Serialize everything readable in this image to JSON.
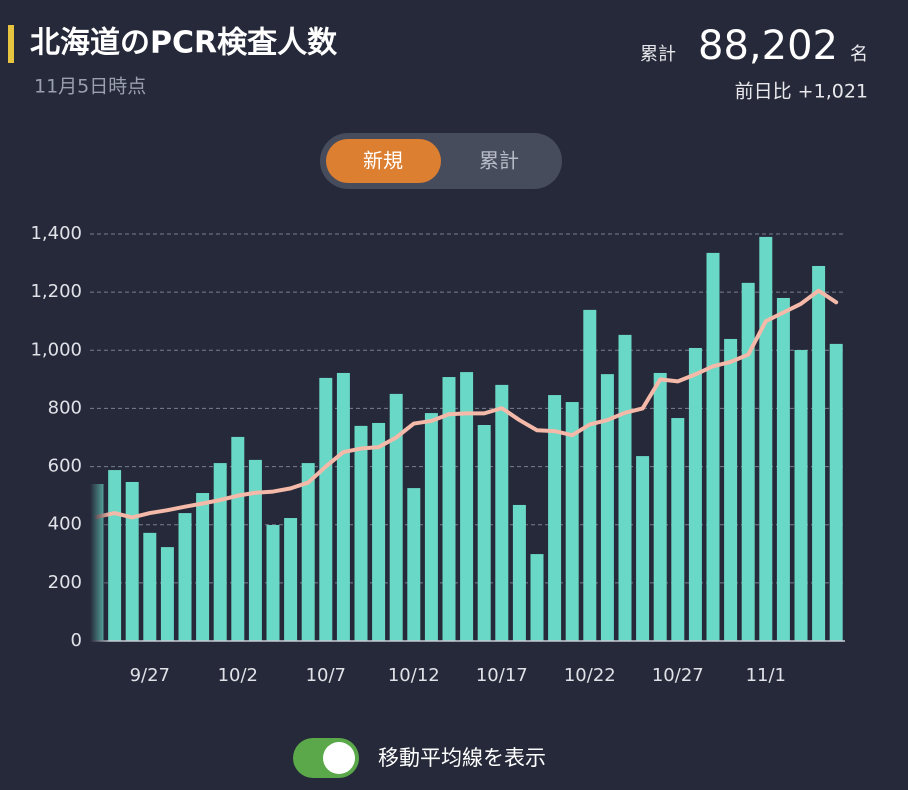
{
  "header": {
    "title": "北海道のPCR検査人数",
    "subtitle": "11月5日時点",
    "total_label": "累計",
    "total_value": "88,202",
    "total_unit": "名",
    "change": "前日比 +1,021"
  },
  "tabs": [
    "新規",
    "累計"
  ],
  "toggle_label": "移動平均線を表示",
  "chart_data": {
    "type": "bar",
    "categories": [
      null,
      null,
      null,
      "9/27",
      null,
      null,
      null,
      null,
      "10/2",
      null,
      null,
      null,
      null,
      "10/7",
      null,
      null,
      null,
      null,
      "10/12",
      null,
      null,
      null,
      null,
      "10/17",
      null,
      null,
      null,
      null,
      "10/22",
      null,
      null,
      null,
      null,
      "10/27",
      null,
      null,
      null,
      null,
      "11/1",
      null,
      null,
      null,
      null
    ],
    "series": [
      {
        "name": "新規",
        "color": "#6ad8c6",
        "values": [
          540,
          588,
          547,
          372,
          323,
          440,
          509,
          612,
          702,
          623,
          399,
          423,
          612,
          905,
          922,
          740,
          750,
          850,
          526,
          784,
          908,
          925,
          743,
          881,
          468,
          299,
          846,
          822,
          1139,
          918,
          1053,
          636,
          922,
          767,
          1008,
          1335,
          1039,
          1232,
          1390,
          1180,
          1001,
          1290,
          1022
        ]
      },
      {
        "name": "移動平均線",
        "type": "line",
        "color": "#f4b9a8",
        "values": [
          427,
          440,
          425,
          440,
          450,
          462,
          473,
          485,
          500,
          510,
          514,
          525,
          545,
          600,
          650,
          662,
          667,
          700,
          748,
          757,
          780,
          783,
          783,
          801,
          760,
          725,
          722,
          708,
          745,
          760,
          785,
          800,
          900,
          893,
          917,
          945,
          960,
          985,
          1100,
          1130,
          1160,
          1205,
          1165
        ]
      }
    ],
    "ylim": [
      0,
      1400
    ],
    "yticks": [
      0,
      200,
      400,
      600,
      800,
      {
        "value": 1000,
        "label": "1,000"
      },
      {
        "value": 1200,
        "label": "1,200"
      },
      {
        "value": 1400,
        "label": "1,400"
      }
    ],
    "grid": true
  }
}
